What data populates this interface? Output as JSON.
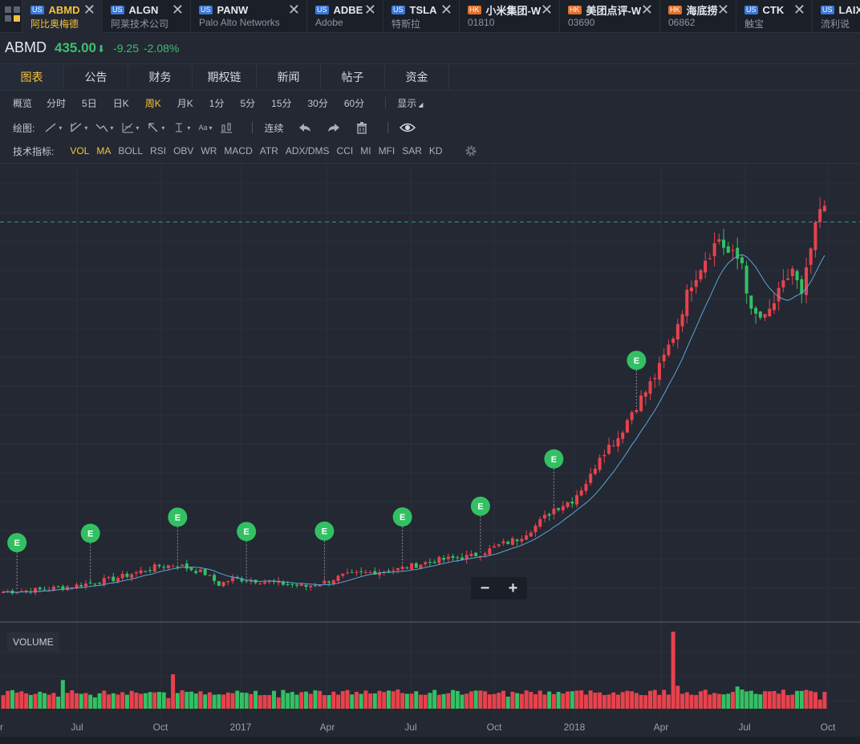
{
  "tickers": [
    {
      "market": "US",
      "symbol": "ABMD",
      "name": "阿比奥梅德",
      "active": true
    },
    {
      "market": "US",
      "symbol": "ALGN",
      "name": "阿莱技术公司"
    },
    {
      "market": "US",
      "symbol": "PANW",
      "name": "Palo Alto Networks"
    },
    {
      "market": "US",
      "symbol": "ADBE",
      "name": "Adobe"
    },
    {
      "market": "US",
      "symbol": "TSLA",
      "name": "特斯拉"
    },
    {
      "market": "HK",
      "symbol": "小米集团-W",
      "name": "01810"
    },
    {
      "market": "HK",
      "symbol": "美团点评-W",
      "name": "03690"
    },
    {
      "market": "HK",
      "symbol": "海底捞",
      "name": "06862"
    },
    {
      "market": "US",
      "symbol": "CTK",
      "name": "触宝"
    },
    {
      "market": "US",
      "symbol": "LAIX",
      "name": "流利说"
    }
  ],
  "tab_close_glyph": "✕",
  "quote": {
    "symbol": "ABMD",
    "price": "435.00",
    "arrow": "⬇",
    "change": "-9.25",
    "percent": "-2.08%"
  },
  "module_tabs": [
    "图表",
    "公告",
    "财务",
    "期权链",
    "新闻",
    "帖子",
    "资金"
  ],
  "periods": [
    "概览",
    "分时",
    "5日",
    "日K",
    "周K",
    "月K",
    "1分",
    "5分",
    "15分",
    "30分",
    "60分"
  ],
  "active_period": "周K",
  "display_button": "显示",
  "drawing": {
    "label": "绘图:",
    "tools": [
      "line-tool-icon",
      "channel-tool-icon",
      "polyline-tool-icon",
      "fib-tool-icon",
      "arrow-tool-icon",
      "measure-tool-icon",
      "text-tool-icon",
      "candle-style-icon"
    ],
    "text_sample": "Aa",
    "continuous_label": "连续",
    "actions": [
      "undo-icon",
      "redo-icon",
      "trash-icon",
      "eye-icon"
    ]
  },
  "indicators": {
    "label": "技术指标:",
    "items": [
      "VOL",
      "MA",
      "BOLL",
      "RSI",
      "OBV",
      "WR",
      "MACD",
      "ATR",
      "ADX/DMS",
      "CCI",
      "MI",
      "MFI",
      "SAR",
      "KD"
    ],
    "active": [
      "VOL",
      "MA"
    ]
  },
  "earnings_marker": "E",
  "zoom": {
    "minus": "−",
    "plus": "+"
  },
  "volume_label": "VOLUME",
  "x_axis_labels": [
    "Apr",
    "Jul",
    "Oct",
    "2017",
    "Apr",
    "Jul",
    "Oct",
    "2018",
    "Apr",
    "Jul",
    "Oct"
  ],
  "colors": {
    "up": "#e8424c",
    "down": "#33c063",
    "ma": "#5aa6d6",
    "accent": "#f5c33b",
    "last_price_line": "#2f9e72"
  },
  "chart_data": {
    "type": "candlestick",
    "interval": "weekly",
    "symbol": "ABMD",
    "start_date": "2016-04",
    "x_tick_labels": [
      "Apr",
      "Jul",
      "Oct",
      "2017",
      "Apr",
      "Jul",
      "Oct",
      "2018",
      "Apr",
      "Jul",
      "Oct"
    ],
    "last_price": 435.0,
    "close_path": [
      [
        0,
        93
      ],
      [
        8,
        95
      ],
      [
        16,
        99
      ],
      [
        24,
        105
      ],
      [
        30,
        112
      ],
      [
        34,
        117
      ],
      [
        38,
        118
      ],
      [
        44,
        110
      ],
      [
        47,
        100
      ],
      [
        50,
        105
      ],
      [
        54,
        104
      ],
      [
        58,
        102
      ],
      [
        62,
        100
      ],
      [
        66,
        98
      ],
      [
        70,
        102
      ],
      [
        74,
        108
      ],
      [
        78,
        110
      ],
      [
        82,
        112
      ],
      [
        86,
        114
      ],
      [
        90,
        118
      ],
      [
        94,
        122
      ],
      [
        98,
        124
      ],
      [
        102,
        126
      ],
      [
        106,
        132
      ],
      [
        108,
        136
      ],
      [
        112,
        142
      ],
      [
        116,
        154
      ],
      [
        120,
        170
      ],
      [
        124,
        178
      ],
      [
        128,
        200
      ],
      [
        130,
        220
      ],
      [
        134,
        236
      ],
      [
        137,
        260
      ],
      [
        140,
        278
      ],
      [
        143,
        300
      ],
      [
        146,
        330
      ],
      [
        150,
        380
      ],
      [
        153,
        402
      ],
      [
        156,
        420
      ],
      [
        158,
        406
      ],
      [
        161,
        398
      ],
      [
        163,
        350
      ],
      [
        166,
        345
      ],
      [
        169,
        368
      ],
      [
        172,
        392
      ],
      [
        174,
        365
      ],
      [
        176,
        410
      ],
      [
        178,
        445
      ]
    ],
    "earnings_weeks": [
      3,
      19,
      38,
      53,
      70,
      87,
      104,
      120,
      138
    ],
    "volume_profile": [
      [
        0,
        0.12
      ],
      [
        12,
        0.1
      ],
      [
        13,
        0.33
      ],
      [
        20,
        0.09
      ],
      [
        36,
        0.08
      ],
      [
        37,
        0.41
      ],
      [
        38,
        0.15
      ],
      [
        60,
        0.09
      ],
      [
        110,
        0.1
      ],
      [
        140,
        0.12
      ],
      [
        141,
        0.18
      ],
      [
        146,
        1.0
      ],
      [
        147,
        0.25
      ],
      [
        160,
        0.24
      ],
      [
        178,
        0.06
      ]
    ]
  }
}
